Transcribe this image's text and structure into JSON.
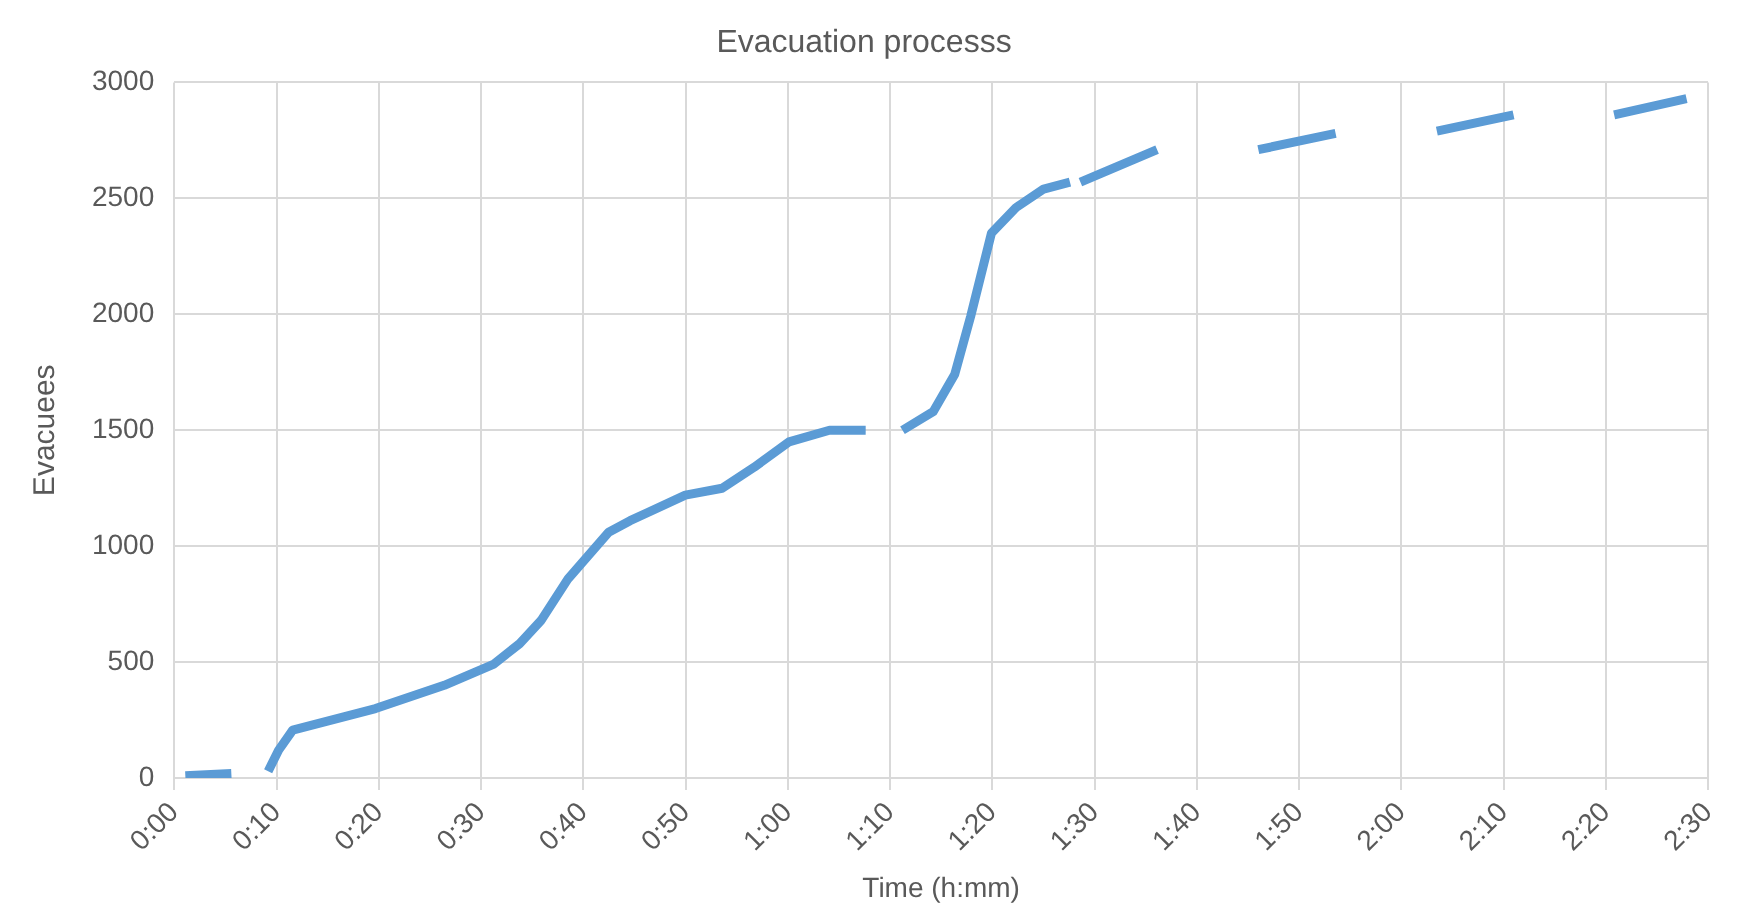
{
  "chart_data": {
    "type": "line",
    "title": "Evacuation processs",
    "xlabel": "Time (h:mm)",
    "ylabel": "Evacuees",
    "xlim": [
      0,
      2.5
    ],
    "xticks": [
      {
        "value": 0,
        "label": "0:00"
      },
      {
        "value": 0.1667,
        "label": "0:10"
      },
      {
        "value": 0.3333,
        "label": "0:20"
      },
      {
        "value": 0.5,
        "label": "0:30"
      },
      {
        "value": 0.6667,
        "label": "0:40"
      },
      {
        "value": 0.8333,
        "label": "0:50"
      },
      {
        "value": 1,
        "label": "1:00"
      },
      {
        "value": 1.1667,
        "label": "1:10"
      },
      {
        "value": 1.3333,
        "label": "1:20"
      },
      {
        "value": 1.5,
        "label": "1:30"
      },
      {
        "value": 1.6667,
        "label": "1:40"
      },
      {
        "value": 1.8333,
        "label": "1:50"
      },
      {
        "value": 2,
        "label": "2:00"
      },
      {
        "value": 2.1667,
        "label": "2:10"
      },
      {
        "value": 2.3333,
        "label": "2:20"
      },
      {
        "value": 2.5,
        "label": "2:30"
      }
    ],
    "ylim": [
      0,
      3000
    ],
    "yticks": [
      0,
      500,
      1000,
      1500,
      2000,
      2500,
      3000
    ],
    "grid": true,
    "legend": false,
    "marker": "none",
    "line_style": "solid",
    "series": [
      {
        "color": "#5b9bd5",
        "x": [
          0.018,
          0.093,
          0.1,
          0.153,
          0.17,
          0.193,
          0.328,
          0.44,
          0.52,
          0.563,
          0.598,
          0.642,
          0.675,
          0.708,
          0.743,
          0.833,
          0.893,
          0.945,
          1.002,
          1.068,
          1.127,
          1.13,
          1.187,
          1.237,
          1.272,
          1.298,
          1.332,
          1.372,
          1.417,
          1.46,
          1.465,
          1.477,
          1.602,
          1.61,
          1.767,
          1.893,
          1.9,
          2.058,
          2.183,
          2.19,
          2.347,
          2.465
        ],
        "values": [
          10,
          20,
          null,
          30,
          120,
          207,
          300,
          400,
          490,
          580,
          680,
          860,
          960,
          1060,
          1110,
          1220,
          1250,
          1340,
          1450,
          1500,
          1500,
          null,
          1500,
          1580,
          1740,
          1990,
          2350,
          2460,
          2540,
          2570,
          null,
          2570,
          2710,
          null,
          2710,
          2780,
          null,
          2790,
          2860,
          null,
          2860,
          2930
        ]
      }
    ]
  }
}
